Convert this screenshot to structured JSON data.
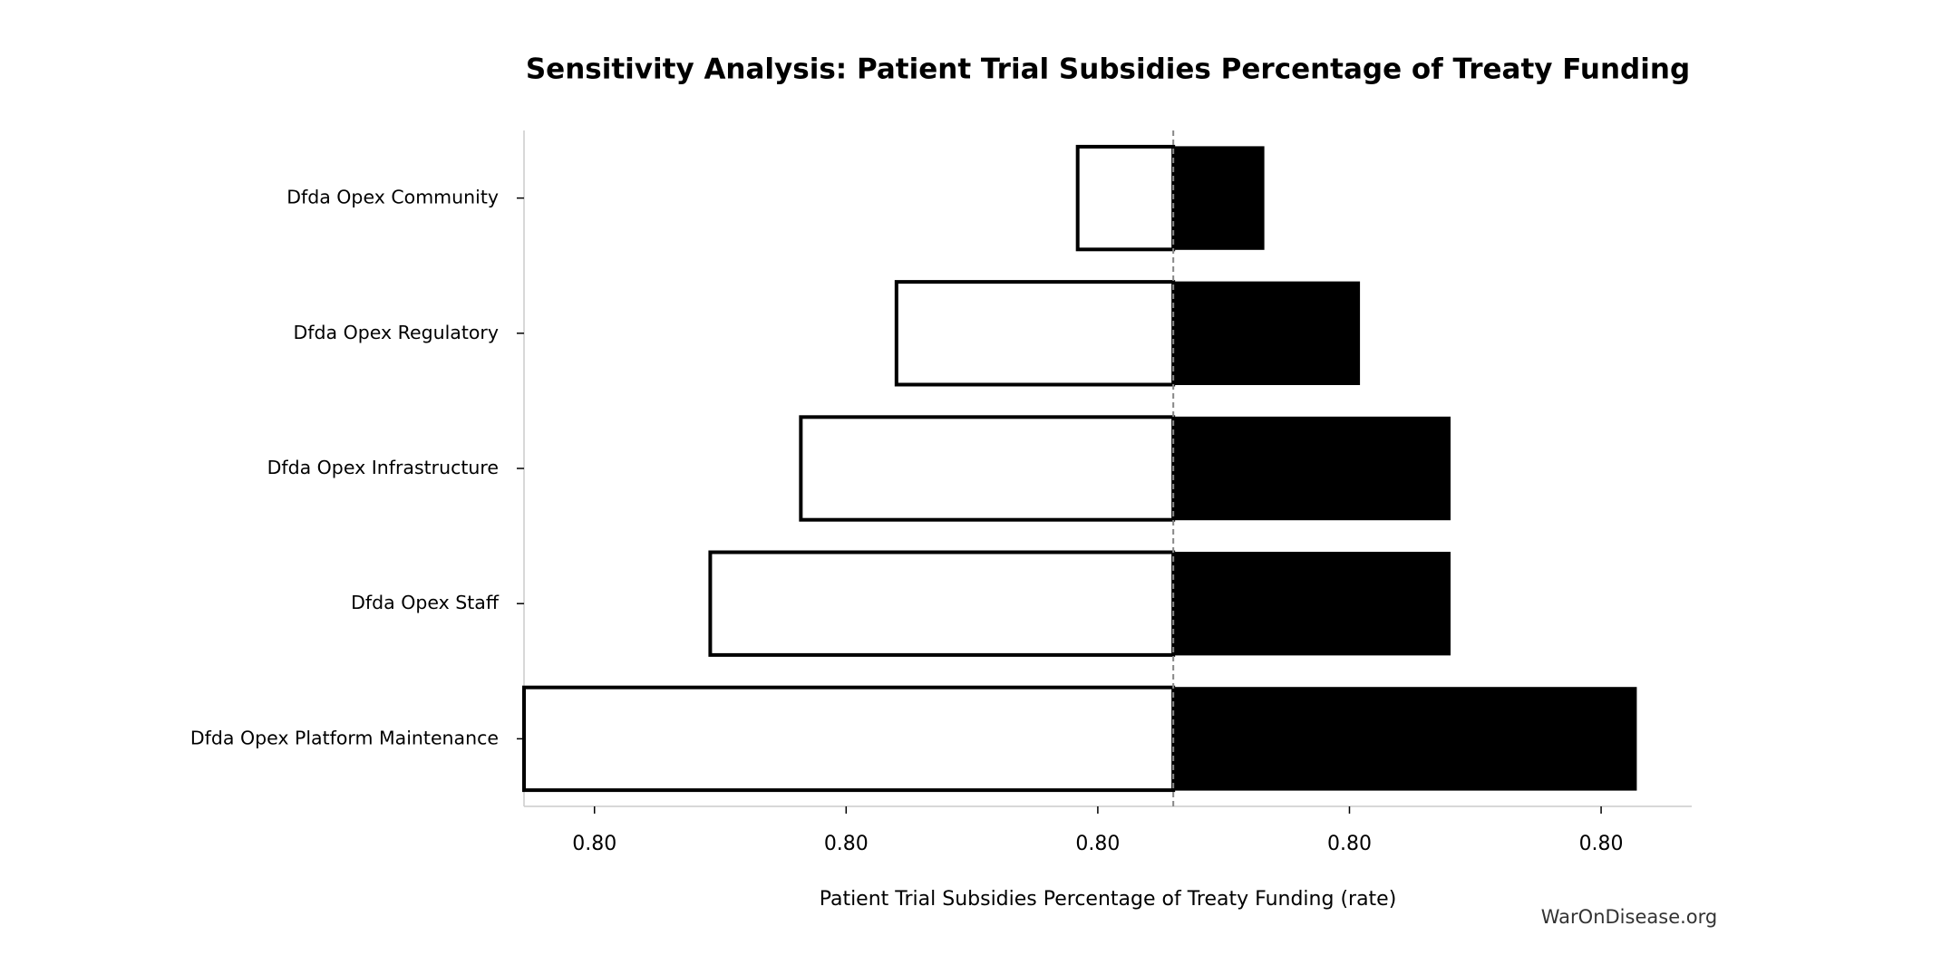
{
  "chart_data": {
    "type": "tornado",
    "title": "Sensitivity Analysis: Patient Trial Subsidies Percentage of Treaty Funding",
    "xlabel": "Patient Trial Subsidies Percentage of Treaty Funding (rate)",
    "watermark": "WarOnDisease.org",
    "categories": [
      "Dfda Opex Community",
      "Dfda Opex Regulatory",
      "Dfda Opex Infrastructure",
      "Dfda Opex Staff",
      "Dfda Opex Platform Maintenance"
    ],
    "low_values": [
      0.79996,
      0.7996,
      0.79941,
      0.79923,
      0.79886
    ],
    "high_values": [
      0.80033,
      0.80052,
      0.8007,
      0.8007,
      0.80107
    ],
    "baseline": 0.80015,
    "low_color": "#ffffff",
    "high_color": "#000000",
    "xlim": [
      0.79886,
      0.80118
    ],
    "xticks": [
      {
        "value": 0.799,
        "label": "0.80"
      },
      {
        "value": 0.7995,
        "label": "0.80"
      },
      {
        "value": 0.8,
        "label": "0.80"
      },
      {
        "value": 0.8005,
        "label": "0.80"
      },
      {
        "value": 0.801,
        "label": "0.80"
      }
    ]
  }
}
